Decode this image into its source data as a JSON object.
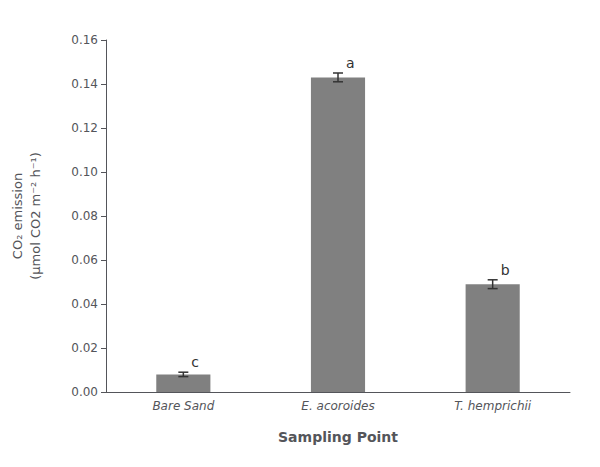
{
  "chart_data": {
    "type": "bar",
    "xlabel": "Sampling Point",
    "ylabel": "CO₂ emission\n(μmol CO2 m⁻² h⁻¹)",
    "categories": [
      "Bare Sand",
      "E. acoroides",
      "T. hemprichii"
    ],
    "values": [
      0.008,
      0.143,
      0.049
    ],
    "errors": [
      0.001,
      0.002,
      0.002
    ],
    "annotations": [
      {
        "category": "Bare Sand",
        "text": "c"
      },
      {
        "category": "E. acoroides",
        "text": "a"
      },
      {
        "category": "T. hemprichii",
        "text": "b"
      }
    ],
    "color": "#808080",
    "ylim": [
      0,
      0.16
    ],
    "yticks": [
      {
        "value": 0,
        "label": "0.00"
      },
      0.02,
      0.04,
      0.06,
      0.08,
      {
        "value": 0.1,
        "label": "0.10"
      },
      0.12,
      0.14,
      0.16
    ],
    "grid": false
  }
}
